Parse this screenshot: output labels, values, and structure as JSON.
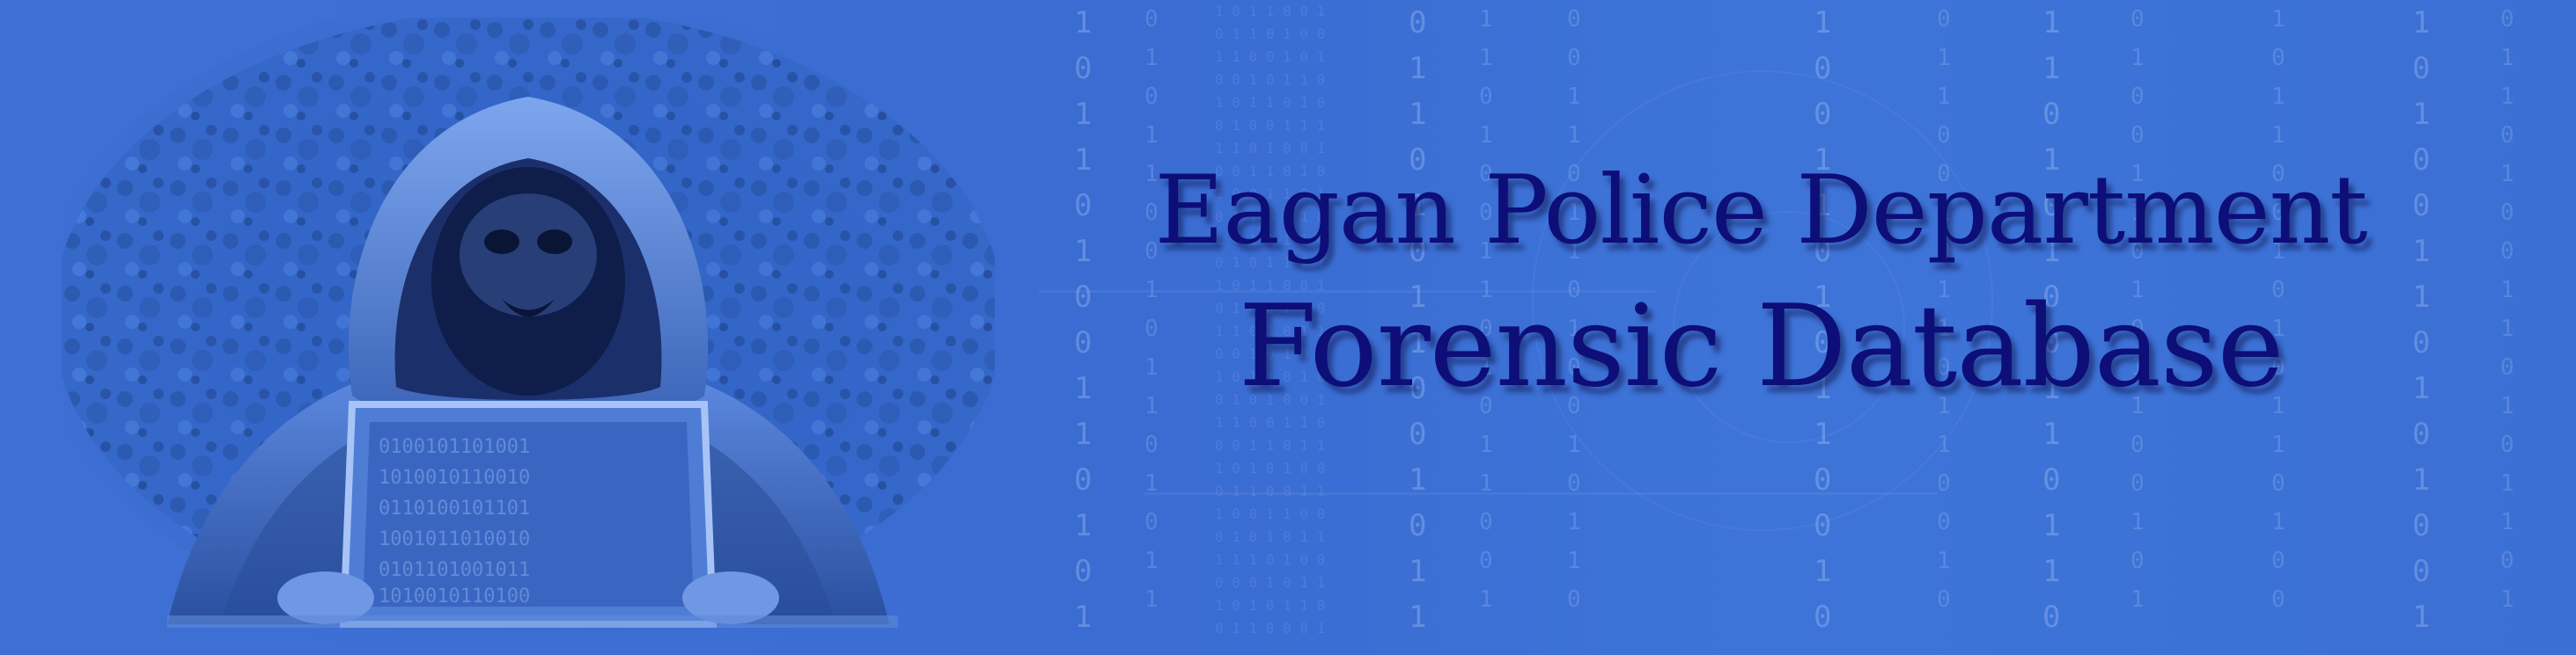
{
  "banner": {
    "title_line_1": "Eagan Police Department",
    "title_line_2": "Forensic Database"
  },
  "colors": {
    "background": "#3d6fd1",
    "title_text": "#0d0e78",
    "rain_digits": "#bed7ff"
  },
  "icons": {
    "figure": "hooded-hacker-with-laptop-icon"
  }
}
